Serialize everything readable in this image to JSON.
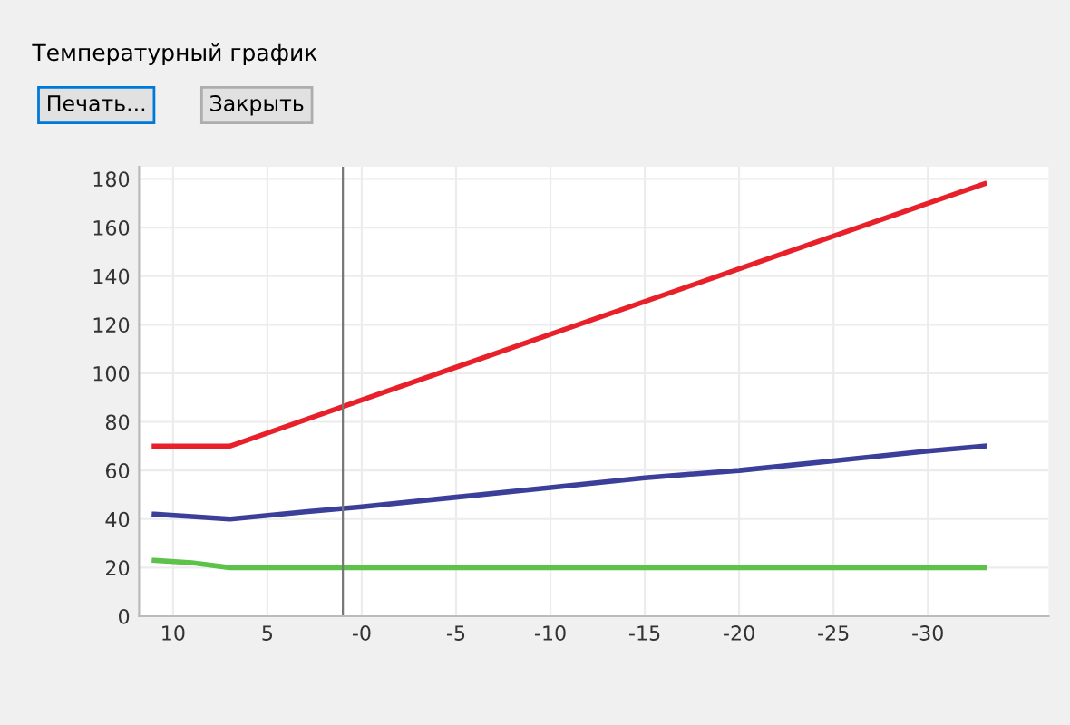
{
  "chart_data": {
    "type": "line",
    "title": "Температурный график",
    "annotations": [
      "Печать...",
      "Закрыть"
    ],
    "series": [
      {
        "color": "#e8202a",
        "x": [
          11,
          7,
          0,
          -10,
          -20,
          -33
        ],
        "values": [
          70,
          70,
          89,
          116,
          143,
          178
        ]
      },
      {
        "color": "#3b3f99",
        "x": [
          11,
          9,
          7,
          3,
          0,
          -5,
          -10,
          -15,
          -20,
          -25,
          -30,
          -33
        ],
        "values": [
          42,
          41,
          40,
          43,
          45,
          49,
          53,
          57,
          60,
          64,
          68,
          70
        ]
      },
      {
        "color": "#5cc24a",
        "x": [
          11,
          9,
          7,
          0,
          -10,
          -20,
          -33
        ],
        "values": [
          23,
          22,
          20,
          20,
          20,
          20,
          20
        ]
      }
    ],
    "xlim": [
      11.8,
      -36.4
    ],
    "xticks": [
      10,
      5,
      {
        "value": 0,
        "label": "-0"
      },
      -5,
      -10,
      -15,
      -20,
      -25,
      -30
    ],
    "ylim": [
      0,
      185
    ],
    "yticks": [
      0,
      20,
      40,
      60,
      80,
      100,
      120,
      140,
      160,
      180
    ],
    "ref_lines": [
      {
        "axis": "x",
        "value": 1,
        "color": "#777777"
      }
    ],
    "grid": true,
    "marker": "none",
    "line_style": "solid"
  }
}
